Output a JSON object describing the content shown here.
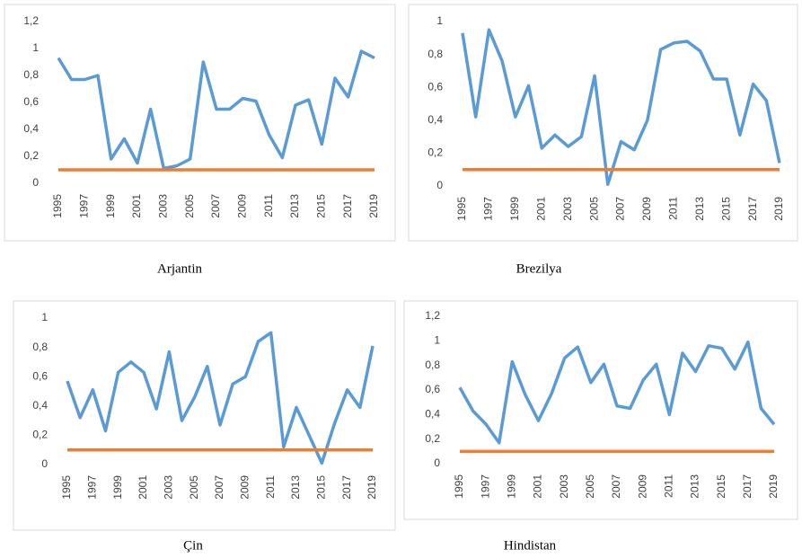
{
  "chart_data": [
    {
      "type": "line",
      "title": "Arjantin",
      "x": [
        1995,
        1996,
        1997,
        1998,
        1999,
        2000,
        2001,
        2002,
        2003,
        2004,
        2005,
        2006,
        2007,
        2008,
        2009,
        2010,
        2011,
        2012,
        2013,
        2014,
        2015,
        2016,
        2017,
        2018,
        2019
      ],
      "xlim": [
        1995,
        2019
      ],
      "xticks": [
        1995,
        1997,
        1999,
        2001,
        2003,
        2005,
        2007,
        2009,
        2011,
        2013,
        2015,
        2017,
        2019
      ],
      "ylim": [
        0,
        1.2
      ],
      "yticks": [
        0,
        {
          "value": 0.2,
          "label": "0,2"
        },
        {
          "value": 0.4,
          "label": "0,4"
        },
        {
          "value": 0.6,
          "label": "0,6"
        },
        {
          "value": 0.8,
          "label": "0,8"
        },
        1,
        {
          "value": 1.2,
          "label": "1,2"
        }
      ],
      "series": [
        {
          "color": "#5b9bd5",
          "values": [
            0.93,
            0.77,
            0.77,
            0.8,
            0.18,
            0.33,
            0.15,
            0.55,
            0.11,
            0.13,
            0.18,
            0.9,
            0.55,
            0.55,
            0.63,
            0.61,
            0.36,
            0.19,
            0.58,
            0.62,
            0.29,
            0.78,
            0.64,
            0.98,
            0.93
          ]
        },
        {
          "color": "#ed7d31",
          "values": [
            0.1,
            0.1,
            0.1,
            0.1,
            0.1,
            0.1,
            0.1,
            0.1,
            0.1,
            0.1,
            0.1,
            0.1,
            0.1,
            0.1,
            0.1,
            0.1,
            0.1,
            0.1,
            0.1,
            0.1,
            0.1,
            0.1,
            0.1,
            0.1,
            0.1
          ]
        }
      ]
    },
    {
      "type": "line",
      "title": "Brezilya",
      "x": [
        1995,
        1996,
        1997,
        1998,
        1999,
        2000,
        2001,
        2002,
        2003,
        2004,
        2005,
        2006,
        2007,
        2008,
        2009,
        2010,
        2011,
        2012,
        2013,
        2014,
        2015,
        2016,
        2017,
        2018,
        2019
      ],
      "xlim": [
        1995,
        2019
      ],
      "xticks": [
        1995,
        1997,
        1999,
        2001,
        2003,
        2005,
        2007,
        2009,
        2011,
        2013,
        2015,
        2017,
        2019
      ],
      "ylim": [
        0,
        1
      ],
      "yticks": [
        0,
        {
          "value": 0.2,
          "label": "0,2"
        },
        {
          "value": 0.4,
          "label": "0,4"
        },
        {
          "value": 0.6,
          "label": "0,6"
        },
        {
          "value": 0.8,
          "label": "0,8"
        },
        1
      ],
      "series": [
        {
          "color": "#5b9bd5",
          "values": [
            0.93,
            0.42,
            0.95,
            0.76,
            0.42,
            0.61,
            0.23,
            0.31,
            0.24,
            0.3,
            0.67,
            0.01,
            0.27,
            0.22,
            0.4,
            0.83,
            0.87,
            0.88,
            0.82,
            0.65,
            0.65,
            0.31,
            0.62,
            0.52,
            0.14
          ]
        },
        {
          "color": "#ed7d31",
          "values": [
            0.1,
            0.1,
            0.1,
            0.1,
            0.1,
            0.1,
            0.1,
            0.1,
            0.1,
            0.1,
            0.1,
            0.1,
            0.1,
            0.1,
            0.1,
            0.1,
            0.1,
            0.1,
            0.1,
            0.1,
            0.1,
            0.1,
            0.1,
            0.1,
            0.1
          ]
        }
      ]
    },
    {
      "type": "line",
      "title": "Çin",
      "x": [
        1995,
        1996,
        1997,
        1998,
        1999,
        2000,
        2001,
        2002,
        2003,
        2004,
        2005,
        2006,
        2007,
        2008,
        2009,
        2010,
        2011,
        2012,
        2013,
        2014,
        2015,
        2016,
        2017,
        2018,
        2019
      ],
      "xlim": [
        1995,
        2019
      ],
      "xticks": [
        1995,
        1997,
        1999,
        2001,
        2003,
        2005,
        2007,
        2009,
        2011,
        2013,
        2015,
        2017,
        2019
      ],
      "ylim": [
        0,
        1
      ],
      "yticks": [
        0,
        {
          "value": 0.2,
          "label": "0,2"
        },
        {
          "value": 0.4,
          "label": "0,4"
        },
        {
          "value": 0.6,
          "label": "0,6"
        },
        {
          "value": 0.8,
          "label": "0,8"
        },
        1
      ],
      "series": [
        {
          "color": "#5b9bd5",
          "values": [
            0.57,
            0.32,
            0.51,
            0.23,
            0.63,
            0.7,
            0.63,
            0.38,
            0.77,
            0.3,
            0.46,
            0.67,
            0.27,
            0.55,
            0.6,
            0.84,
            0.9,
            0.12,
            0.39,
            0.2,
            0.01,
            0.28,
            0.51,
            0.39,
            0.81
          ]
        },
        {
          "color": "#ed7d31",
          "values": [
            0.1,
            0.1,
            0.1,
            0.1,
            0.1,
            0.1,
            0.1,
            0.1,
            0.1,
            0.1,
            0.1,
            0.1,
            0.1,
            0.1,
            0.1,
            0.1,
            0.1,
            0.1,
            0.1,
            0.1,
            0.1,
            0.1,
            0.1,
            0.1,
            0.1
          ]
        }
      ]
    },
    {
      "type": "line",
      "title": "Hindistan",
      "x": [
        1995,
        1996,
        1997,
        1998,
        1999,
        2000,
        2001,
        2002,
        2003,
        2004,
        2005,
        2006,
        2007,
        2008,
        2009,
        2010,
        2011,
        2012,
        2013,
        2014,
        2015,
        2016,
        2017,
        2018,
        2019
      ],
      "xlim": [
        1995,
        2019
      ],
      "xticks": [
        1995,
        1997,
        1999,
        2001,
        2003,
        2005,
        2007,
        2009,
        2011,
        2013,
        2015,
        2017,
        2019
      ],
      "ylim": [
        0,
        1.2
      ],
      "yticks": [
        0,
        {
          "value": 0.2,
          "label": "0,2"
        },
        {
          "value": 0.4,
          "label": "0,4"
        },
        {
          "value": 0.6,
          "label": "0,6"
        },
        {
          "value": 0.8,
          "label": "0,8"
        },
        1,
        {
          "value": 1.2,
          "label": "1,2"
        }
      ],
      "series": [
        {
          "color": "#5b9bd5",
          "values": [
            0.62,
            0.43,
            0.32,
            0.17,
            0.83,
            0.56,
            0.35,
            0.57,
            0.86,
            0.95,
            0.66,
            0.81,
            0.47,
            0.45,
            0.68,
            0.81,
            0.4,
            0.9,
            0.75,
            0.96,
            0.94,
            0.77,
            0.99,
            0.45,
            0.32
          ]
        },
        {
          "color": "#ed7d31",
          "values": [
            0.1,
            0.1,
            0.1,
            0.1,
            0.1,
            0.1,
            0.1,
            0.1,
            0.1,
            0.1,
            0.1,
            0.1,
            0.1,
            0.1,
            0.1,
            0.1,
            0.1,
            0.1,
            0.1,
            0.1,
            0.1,
            0.1,
            0.1,
            0.1,
            0.1
          ]
        }
      ]
    }
  ]
}
